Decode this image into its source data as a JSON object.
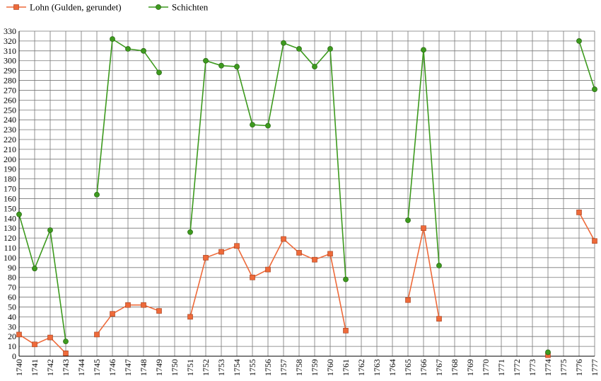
{
  "chart_data": {
    "type": "line",
    "x": [
      "1740",
      "1741",
      "1742",
      "1743",
      "1744",
      "1745",
      "1746",
      "1747",
      "1748",
      "1749",
      "1750",
      "1751",
      "1752",
      "1753",
      "1754",
      "1755",
      "1756",
      "1757",
      "1758",
      "1759",
      "1760",
      "1761",
      "1762",
      "1763",
      "1764",
      "1765",
      "1766",
      "1767",
      "1768",
      "1769",
      "1770",
      "1771",
      "1772",
      "1773",
      "1774",
      "1775",
      "1776",
      "1777"
    ],
    "ylim": [
      0,
      330
    ],
    "yticks": [
      0,
      10,
      20,
      30,
      40,
      50,
      60,
      70,
      80,
      90,
      100,
      110,
      120,
      130,
      140,
      150,
      160,
      170,
      180,
      190,
      200,
      210,
      220,
      230,
      240,
      250,
      260,
      270,
      280,
      290,
      300,
      310,
      320,
      330
    ],
    "grid": true,
    "legend_position": "top-left",
    "series": [
      {
        "name": "Lohn (Gulden, gerundet)",
        "color": "#ee6a3a",
        "marker": "square",
        "values": [
          22,
          12,
          19,
          3,
          null,
          22,
          43,
          52,
          52,
          46,
          null,
          40,
          100,
          106,
          112,
          80,
          88,
          119,
          105,
          98,
          104,
          26,
          null,
          null,
          null,
          57,
          130,
          38,
          null,
          null,
          null,
          null,
          null,
          null,
          1,
          null,
          146,
          117
        ]
      },
      {
        "name": "Schichten",
        "color": "#3d9a1e",
        "marker": "circle",
        "values": [
          144,
          89,
          128,
          15,
          null,
          164,
          322,
          312,
          310,
          288,
          null,
          126,
          300,
          295,
          294,
          235,
          234,
          318,
          312,
          294,
          312,
          78,
          null,
          null,
          null,
          138,
          311,
          92,
          null,
          null,
          null,
          null,
          null,
          null,
          4,
          null,
          320,
          271
        ]
      }
    ]
  }
}
